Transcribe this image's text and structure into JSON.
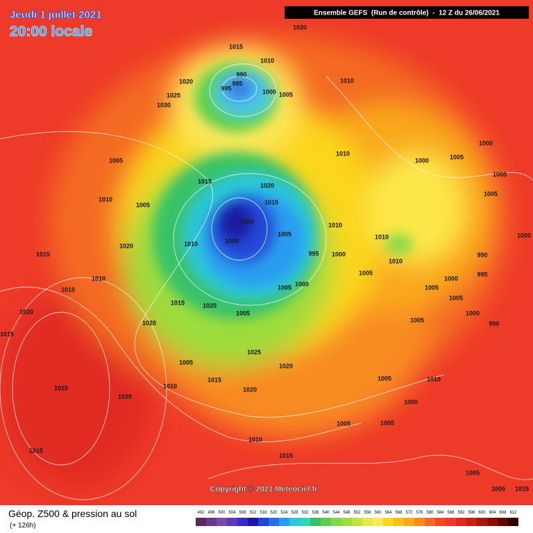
{
  "header": {
    "date": "Jeudi 1 juillet 2021",
    "time": "20:00 locale",
    "model": "Ensemble GEFS  (Run de contrôle)  -  12 Z du 26/06/2021"
  },
  "map": {
    "isobar_labels": [
      1020,
      1015,
      1010,
      990,
      985,
      995,
      1000,
      1005,
      1020,
      1025,
      1030,
      1010,
      1010,
      1000,
      1000,
      1005,
      1000,
      1005,
      1005,
      1010,
      1005,
      1015,
      1020,
      1015,
      1000,
      1000,
      1005,
      1010,
      1010,
      1010,
      1020,
      1015,
      1010,
      1010,
      1010,
      1020,
      1015,
      1015,
      1020,
      1005,
      995,
      1000,
      1005,
      1005,
      1000,
      1005,
      1000,
      1005,
      1000,
      1005,
      990,
      995,
      990,
      1020,
      1025,
      1005,
      1020,
      1010,
      1015,
      1020,
      1025,
      1020,
      1010,
      1005,
      1000,
      1005,
      1005,
      1010,
      1015,
      1015,
      1005,
      1005,
      1015,
      1000
    ]
  },
  "copyright": "Copyright © 2021 Meteociel.fr",
  "footer": {
    "title": "Géop. Z500 & pression au sol",
    "subtitle": "(+ 126h)",
    "scale": [
      492,
      496,
      500,
      504,
      508,
      512,
      516,
      520,
      524,
      528,
      532,
      536,
      540,
      544,
      548,
      552,
      556,
      560,
      564,
      568,
      572,
      576,
      580,
      584,
      588,
      592,
      596,
      600,
      604,
      608,
      612
    ]
  }
}
